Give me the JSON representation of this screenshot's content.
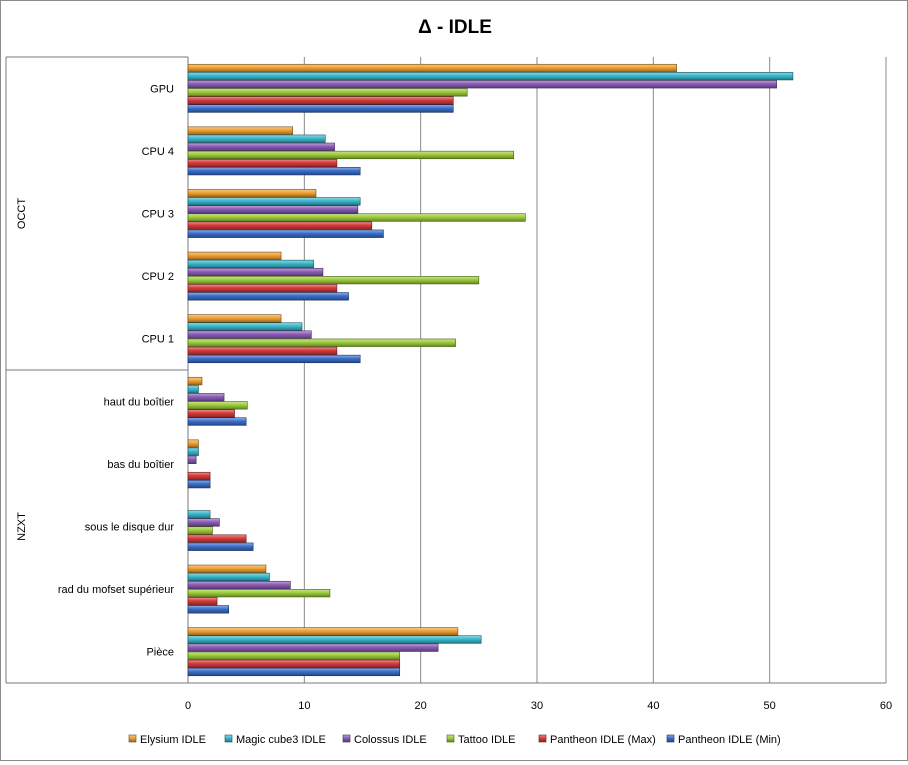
{
  "chart_data": {
    "type": "bar",
    "orientation": "horizontal",
    "title": "Δ - IDLE",
    "groups": [
      {
        "label": "OCCT",
        "categories": [
          "GPU",
          "CPU 4",
          "CPU 3",
          "CPU 2",
          "CPU 1"
        ]
      },
      {
        "label": "NZXT",
        "categories": [
          "haut du boîtier",
          "bas du boîtier",
          "sous le disque dur",
          "rad du mofset supérieur",
          "Pièce"
        ]
      }
    ],
    "categories": [
      "GPU",
      "CPU 4",
      "CPU 3",
      "CPU 2",
      "CPU 1",
      "haut du boîtier",
      "bas du boîtier",
      "sous le disque dur",
      "rad du mofset supérieur",
      "Pièce"
    ],
    "series": [
      {
        "name": "Elysium IDLE",
        "color": "#f0a030",
        "values": [
          42,
          9,
          11,
          8,
          8,
          1.2,
          0.9,
          0,
          6.7,
          23.2
        ]
      },
      {
        "name": "Magic cube3 IDLE",
        "color": "#38b8cc",
        "values": [
          52,
          11.8,
          14.8,
          10.8,
          9.8,
          0.9,
          0.9,
          1.9,
          7,
          25.2
        ]
      },
      {
        "name": "Colossus IDLE",
        "color": "#8b5cb8",
        "values": [
          50.6,
          12.6,
          14.6,
          11.6,
          10.6,
          3.1,
          0.7,
          2.7,
          8.8,
          21.5
        ]
      },
      {
        "name": "Tattoo IDLE",
        "color": "#9dcc3a",
        "values": [
          24,
          28,
          29,
          25,
          23,
          5.1,
          0,
          2.1,
          12.2,
          18.2
        ]
      },
      {
        "name": "Pantheon IDLE (Max)",
        "color": "#d83a3a",
        "values": [
          22.8,
          12.8,
          15.8,
          12.8,
          12.8,
          4,
          1.9,
          5,
          2.5,
          18.2
        ]
      },
      {
        "name": "Pantheon IDLE (Min)",
        "color": "#3a6ecc",
        "values": [
          22.8,
          14.8,
          16.8,
          13.8,
          14.8,
          5,
          1.9,
          5.6,
          3.5,
          18.2
        ]
      }
    ],
    "xlim": [
      0,
      60
    ],
    "xticks": [
      "0",
      "10",
      "20",
      "30",
      "40",
      "50",
      "60"
    ],
    "grid": true,
    "legend_position": "bottom"
  }
}
